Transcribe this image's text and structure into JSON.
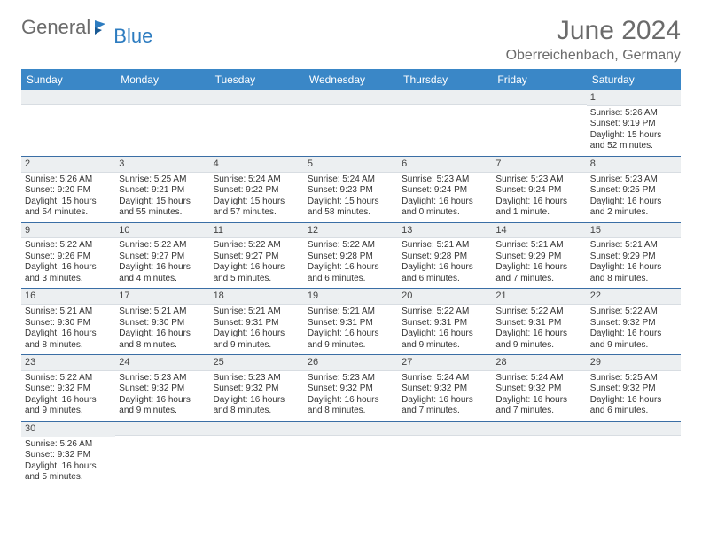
{
  "logo": {
    "text1": "General",
    "text2": "Blue"
  },
  "title": {
    "month": "June 2024",
    "location": "Oberreichenbach, Germany"
  },
  "colors": {
    "header_bg": "#3a87c7",
    "header_text": "#ffffff",
    "daynum_bg": "#eceff1",
    "week_border": "#3a6ea5",
    "text": "#333333",
    "title_text": "#6b6b6b",
    "logo_gray": "#6b6b6b",
    "logo_blue": "#2d7cc0"
  },
  "day_names": [
    "Sunday",
    "Monday",
    "Tuesday",
    "Wednesday",
    "Thursday",
    "Friday",
    "Saturday"
  ],
  "weeks": [
    [
      null,
      null,
      null,
      null,
      null,
      null,
      {
        "d": "1",
        "sr": "Sunrise: 5:26 AM",
        "ss": "Sunset: 9:19 PM",
        "dl": "Daylight: 15 hours and 52 minutes."
      }
    ],
    [
      {
        "d": "2",
        "sr": "Sunrise: 5:26 AM",
        "ss": "Sunset: 9:20 PM",
        "dl": "Daylight: 15 hours and 54 minutes."
      },
      {
        "d": "3",
        "sr": "Sunrise: 5:25 AM",
        "ss": "Sunset: 9:21 PM",
        "dl": "Daylight: 15 hours and 55 minutes."
      },
      {
        "d": "4",
        "sr": "Sunrise: 5:24 AM",
        "ss": "Sunset: 9:22 PM",
        "dl": "Daylight: 15 hours and 57 minutes."
      },
      {
        "d": "5",
        "sr": "Sunrise: 5:24 AM",
        "ss": "Sunset: 9:23 PM",
        "dl": "Daylight: 15 hours and 58 minutes."
      },
      {
        "d": "6",
        "sr": "Sunrise: 5:23 AM",
        "ss": "Sunset: 9:24 PM",
        "dl": "Daylight: 16 hours and 0 minutes."
      },
      {
        "d": "7",
        "sr": "Sunrise: 5:23 AM",
        "ss": "Sunset: 9:24 PM",
        "dl": "Daylight: 16 hours and 1 minute."
      },
      {
        "d": "8",
        "sr": "Sunrise: 5:23 AM",
        "ss": "Sunset: 9:25 PM",
        "dl": "Daylight: 16 hours and 2 minutes."
      }
    ],
    [
      {
        "d": "9",
        "sr": "Sunrise: 5:22 AM",
        "ss": "Sunset: 9:26 PM",
        "dl": "Daylight: 16 hours and 3 minutes."
      },
      {
        "d": "10",
        "sr": "Sunrise: 5:22 AM",
        "ss": "Sunset: 9:27 PM",
        "dl": "Daylight: 16 hours and 4 minutes."
      },
      {
        "d": "11",
        "sr": "Sunrise: 5:22 AM",
        "ss": "Sunset: 9:27 PM",
        "dl": "Daylight: 16 hours and 5 minutes."
      },
      {
        "d": "12",
        "sr": "Sunrise: 5:22 AM",
        "ss": "Sunset: 9:28 PM",
        "dl": "Daylight: 16 hours and 6 minutes."
      },
      {
        "d": "13",
        "sr": "Sunrise: 5:21 AM",
        "ss": "Sunset: 9:28 PM",
        "dl": "Daylight: 16 hours and 6 minutes."
      },
      {
        "d": "14",
        "sr": "Sunrise: 5:21 AM",
        "ss": "Sunset: 9:29 PM",
        "dl": "Daylight: 16 hours and 7 minutes."
      },
      {
        "d": "15",
        "sr": "Sunrise: 5:21 AM",
        "ss": "Sunset: 9:29 PM",
        "dl": "Daylight: 16 hours and 8 minutes."
      }
    ],
    [
      {
        "d": "16",
        "sr": "Sunrise: 5:21 AM",
        "ss": "Sunset: 9:30 PM",
        "dl": "Daylight: 16 hours and 8 minutes."
      },
      {
        "d": "17",
        "sr": "Sunrise: 5:21 AM",
        "ss": "Sunset: 9:30 PM",
        "dl": "Daylight: 16 hours and 8 minutes."
      },
      {
        "d": "18",
        "sr": "Sunrise: 5:21 AM",
        "ss": "Sunset: 9:31 PM",
        "dl": "Daylight: 16 hours and 9 minutes."
      },
      {
        "d": "19",
        "sr": "Sunrise: 5:21 AM",
        "ss": "Sunset: 9:31 PM",
        "dl": "Daylight: 16 hours and 9 minutes."
      },
      {
        "d": "20",
        "sr": "Sunrise: 5:22 AM",
        "ss": "Sunset: 9:31 PM",
        "dl": "Daylight: 16 hours and 9 minutes."
      },
      {
        "d": "21",
        "sr": "Sunrise: 5:22 AM",
        "ss": "Sunset: 9:31 PM",
        "dl": "Daylight: 16 hours and 9 minutes."
      },
      {
        "d": "22",
        "sr": "Sunrise: 5:22 AM",
        "ss": "Sunset: 9:32 PM",
        "dl": "Daylight: 16 hours and 9 minutes."
      }
    ],
    [
      {
        "d": "23",
        "sr": "Sunrise: 5:22 AM",
        "ss": "Sunset: 9:32 PM",
        "dl": "Daylight: 16 hours and 9 minutes."
      },
      {
        "d": "24",
        "sr": "Sunrise: 5:23 AM",
        "ss": "Sunset: 9:32 PM",
        "dl": "Daylight: 16 hours and 9 minutes."
      },
      {
        "d": "25",
        "sr": "Sunrise: 5:23 AM",
        "ss": "Sunset: 9:32 PM",
        "dl": "Daylight: 16 hours and 8 minutes."
      },
      {
        "d": "26",
        "sr": "Sunrise: 5:23 AM",
        "ss": "Sunset: 9:32 PM",
        "dl": "Daylight: 16 hours and 8 minutes."
      },
      {
        "d": "27",
        "sr": "Sunrise: 5:24 AM",
        "ss": "Sunset: 9:32 PM",
        "dl": "Daylight: 16 hours and 7 minutes."
      },
      {
        "d": "28",
        "sr": "Sunrise: 5:24 AM",
        "ss": "Sunset: 9:32 PM",
        "dl": "Daylight: 16 hours and 7 minutes."
      },
      {
        "d": "29",
        "sr": "Sunrise: 5:25 AM",
        "ss": "Sunset: 9:32 PM",
        "dl": "Daylight: 16 hours and 6 minutes."
      }
    ],
    [
      {
        "d": "30",
        "sr": "Sunrise: 5:26 AM",
        "ss": "Sunset: 9:32 PM",
        "dl": "Daylight: 16 hours and 5 minutes."
      },
      null,
      null,
      null,
      null,
      null,
      null
    ]
  ]
}
